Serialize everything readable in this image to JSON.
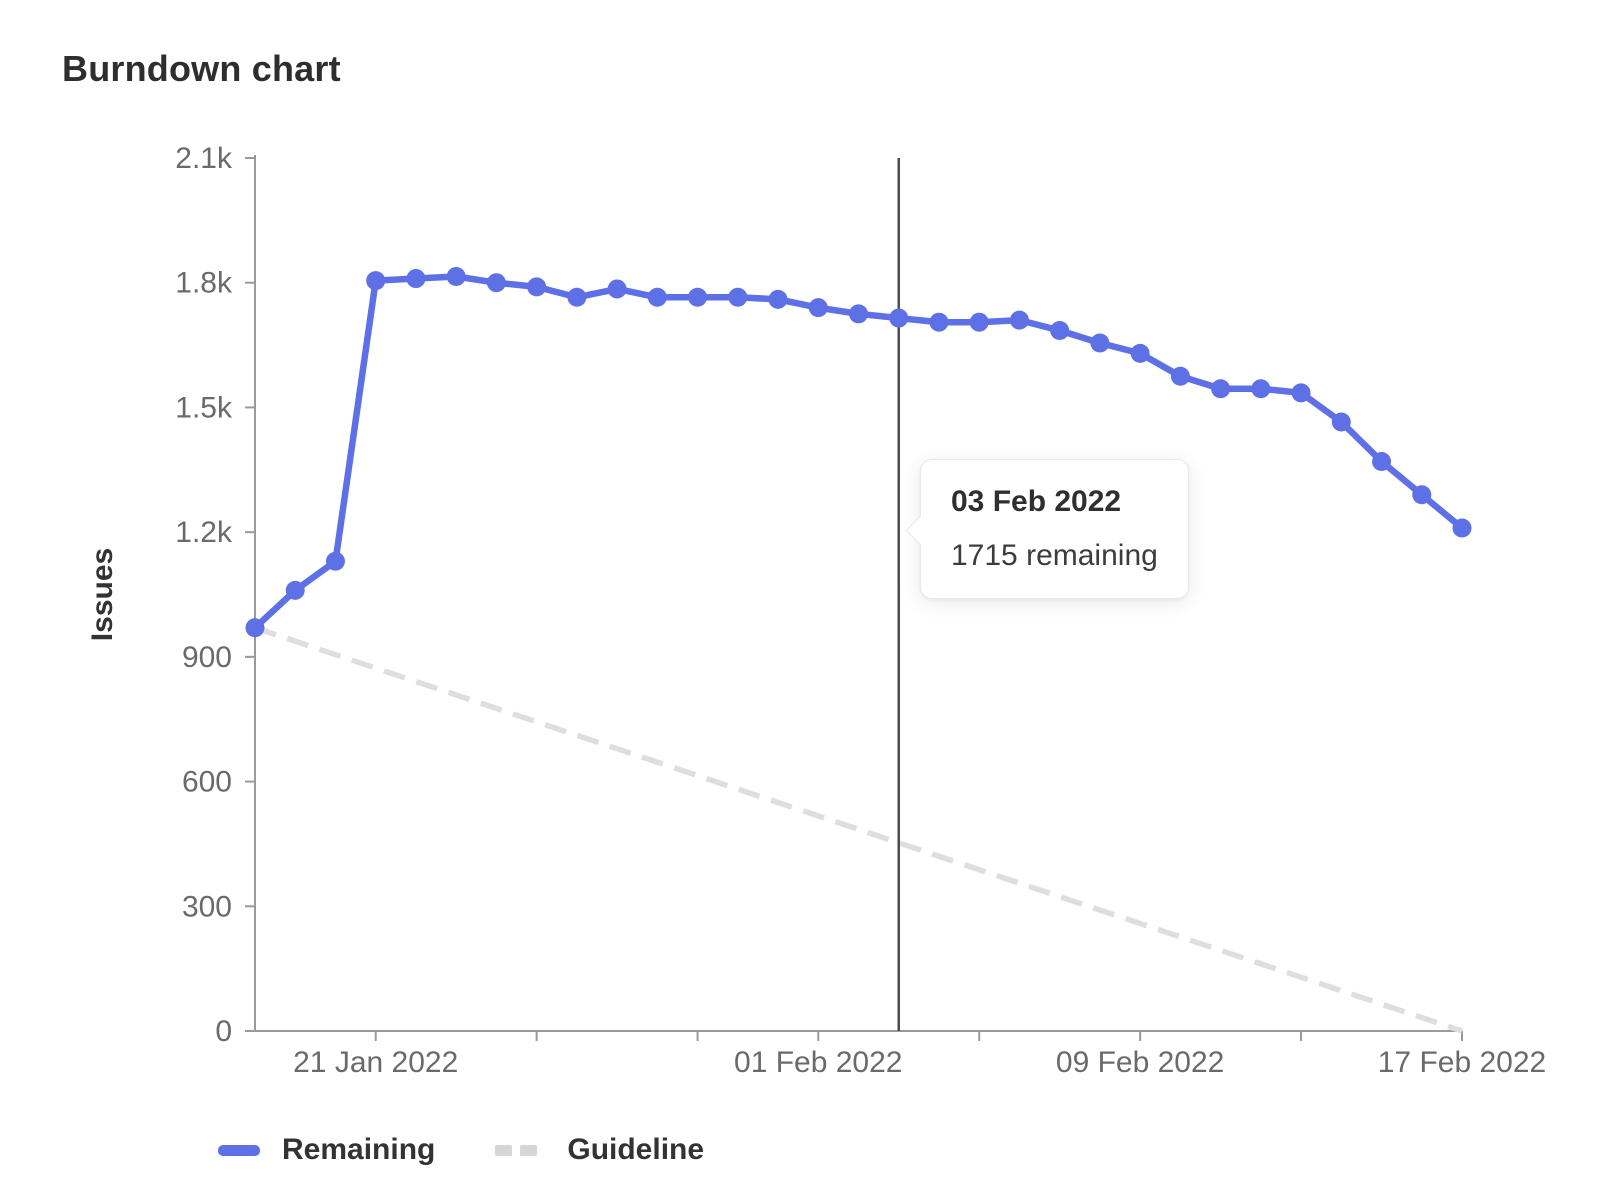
{
  "title": "Burndown chart",
  "tooltip": {
    "title": "03 Feb 2022",
    "body": "1715 remaining"
  },
  "legend": {
    "items": [
      {
        "label": "Remaining",
        "swatch": "solid"
      },
      {
        "label": "Guideline",
        "swatch": "dashed"
      }
    ]
  },
  "colors": {
    "remaining": "#5e70e5",
    "guideline": "#dedede",
    "axis": "#9a9a9a",
    "tick_text": "#6a6a6a",
    "axis_title_text": "#333333",
    "today_line": "#4b4b4b"
  },
  "chart_data": {
    "type": "line",
    "title": "Burndown chart",
    "xlabel": "",
    "ylabel": "Issues",
    "ylim": [
      0,
      2100
    ],
    "grid": false,
    "legend_position": "bottom",
    "x": [
      "18 Jan 2022",
      "19 Jan 2022",
      "20 Jan 2022",
      "21 Jan 2022",
      "22 Jan 2022",
      "23 Jan 2022",
      "24 Jan 2022",
      "25 Jan 2022",
      "26 Jan 2022",
      "27 Jan 2022",
      "28 Jan 2022",
      "29 Jan 2022",
      "30 Jan 2022",
      "31 Jan 2022",
      "01 Feb 2022",
      "02 Feb 2022",
      "03 Feb 2022",
      "04 Feb 2022",
      "05 Feb 2022",
      "06 Feb 2022",
      "07 Feb 2022",
      "08 Feb 2022",
      "09 Feb 2022",
      "10 Feb 2022",
      "11 Feb 2022",
      "12 Feb 2022",
      "13 Feb 2022",
      "14 Feb 2022",
      "15 Feb 2022",
      "16 Feb 2022",
      "17 Feb 2022"
    ],
    "series": [
      {
        "name": "Remaining",
        "style": "solid",
        "values": [
          970,
          1060,
          1130,
          1805,
          1810,
          1815,
          1800,
          1790,
          1765,
          1785,
          1765,
          1765,
          1765,
          1760,
          1740,
          1725,
          1715,
          1705,
          1705,
          1710,
          1685,
          1655,
          1630,
          1575,
          1545,
          1545,
          1535,
          1465,
          1370,
          1290,
          1210
        ]
      },
      {
        "name": "Guideline",
        "style": "dashed",
        "endpoints": [
          970,
          0
        ]
      }
    ],
    "y_ticks": [
      {
        "value": 0,
        "label": "0"
      },
      {
        "value": 300,
        "label": "300"
      },
      {
        "value": 600,
        "label": "600"
      },
      {
        "value": 900,
        "label": "900"
      },
      {
        "value": 1200,
        "label": "1.2k"
      },
      {
        "value": 1500,
        "label": "1.5k"
      },
      {
        "value": 1800,
        "label": "1.8k"
      },
      {
        "value": 2100,
        "label": "2.1k"
      }
    ],
    "x_tick_indices": [
      3,
      7,
      11,
      14,
      18,
      22,
      26,
      30
    ],
    "x_label_indices": [
      3,
      14,
      22,
      30
    ],
    "marker": {
      "label": "03 Feb 2022",
      "index": 16,
      "value": 1715
    }
  }
}
